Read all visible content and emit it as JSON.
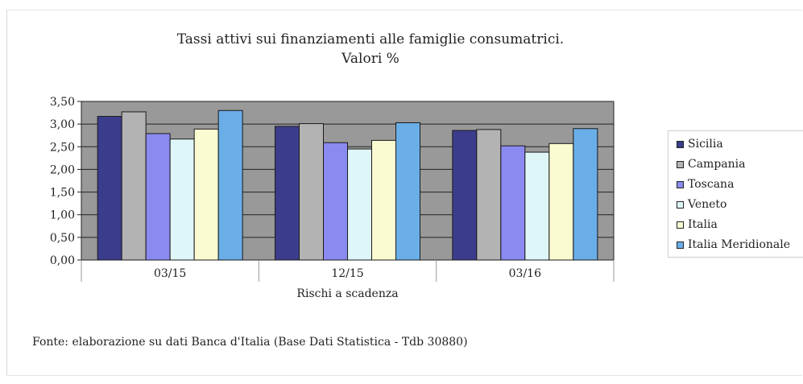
{
  "chart_data": {
    "type": "bar",
    "title": [
      "Tassi attivi sui finanziamenti alle famiglie consumatrici.",
      "Valori %"
    ],
    "xlabel": "Rischi a scadenza",
    "ylabel": "",
    "ylim": [
      0,
      3.5
    ],
    "yticks": [
      "0,00",
      "0,50",
      "1,00",
      "1,50",
      "2,00",
      "2,50",
      "3,00",
      "3,50"
    ],
    "categories": [
      "03/15",
      "12/15",
      "03/16"
    ],
    "series": [
      {
        "name": "Sicilia",
        "values": [
          3.17,
          2.95,
          2.86
        ],
        "color": "#3b3d8c"
      },
      {
        "name": "Campania",
        "values": [
          3.27,
          3.01,
          2.88
        ],
        "color": "#b3b3b3"
      },
      {
        "name": "Toscana",
        "values": [
          2.79,
          2.59,
          2.52
        ],
        "color": "#8a8af0"
      },
      {
        "name": "Veneto",
        "values": [
          2.67,
          2.45,
          2.38
        ],
        "color": "#dff6f8"
      },
      {
        "name": "Italia",
        "values": [
          2.89,
          2.64,
          2.57
        ],
        "color": "#fbfbd2"
      },
      {
        "name": "Italia Meridionale",
        "values": [
          3.3,
          3.03,
          2.9
        ],
        "color": "#6aaee8"
      }
    ],
    "plot_background": "#999999",
    "grid": true,
    "legend_position": "right"
  },
  "source_note": "Fonte: elaborazione su dati Banca d'Italia (Base Dati Statistica - Tdb 30880)"
}
